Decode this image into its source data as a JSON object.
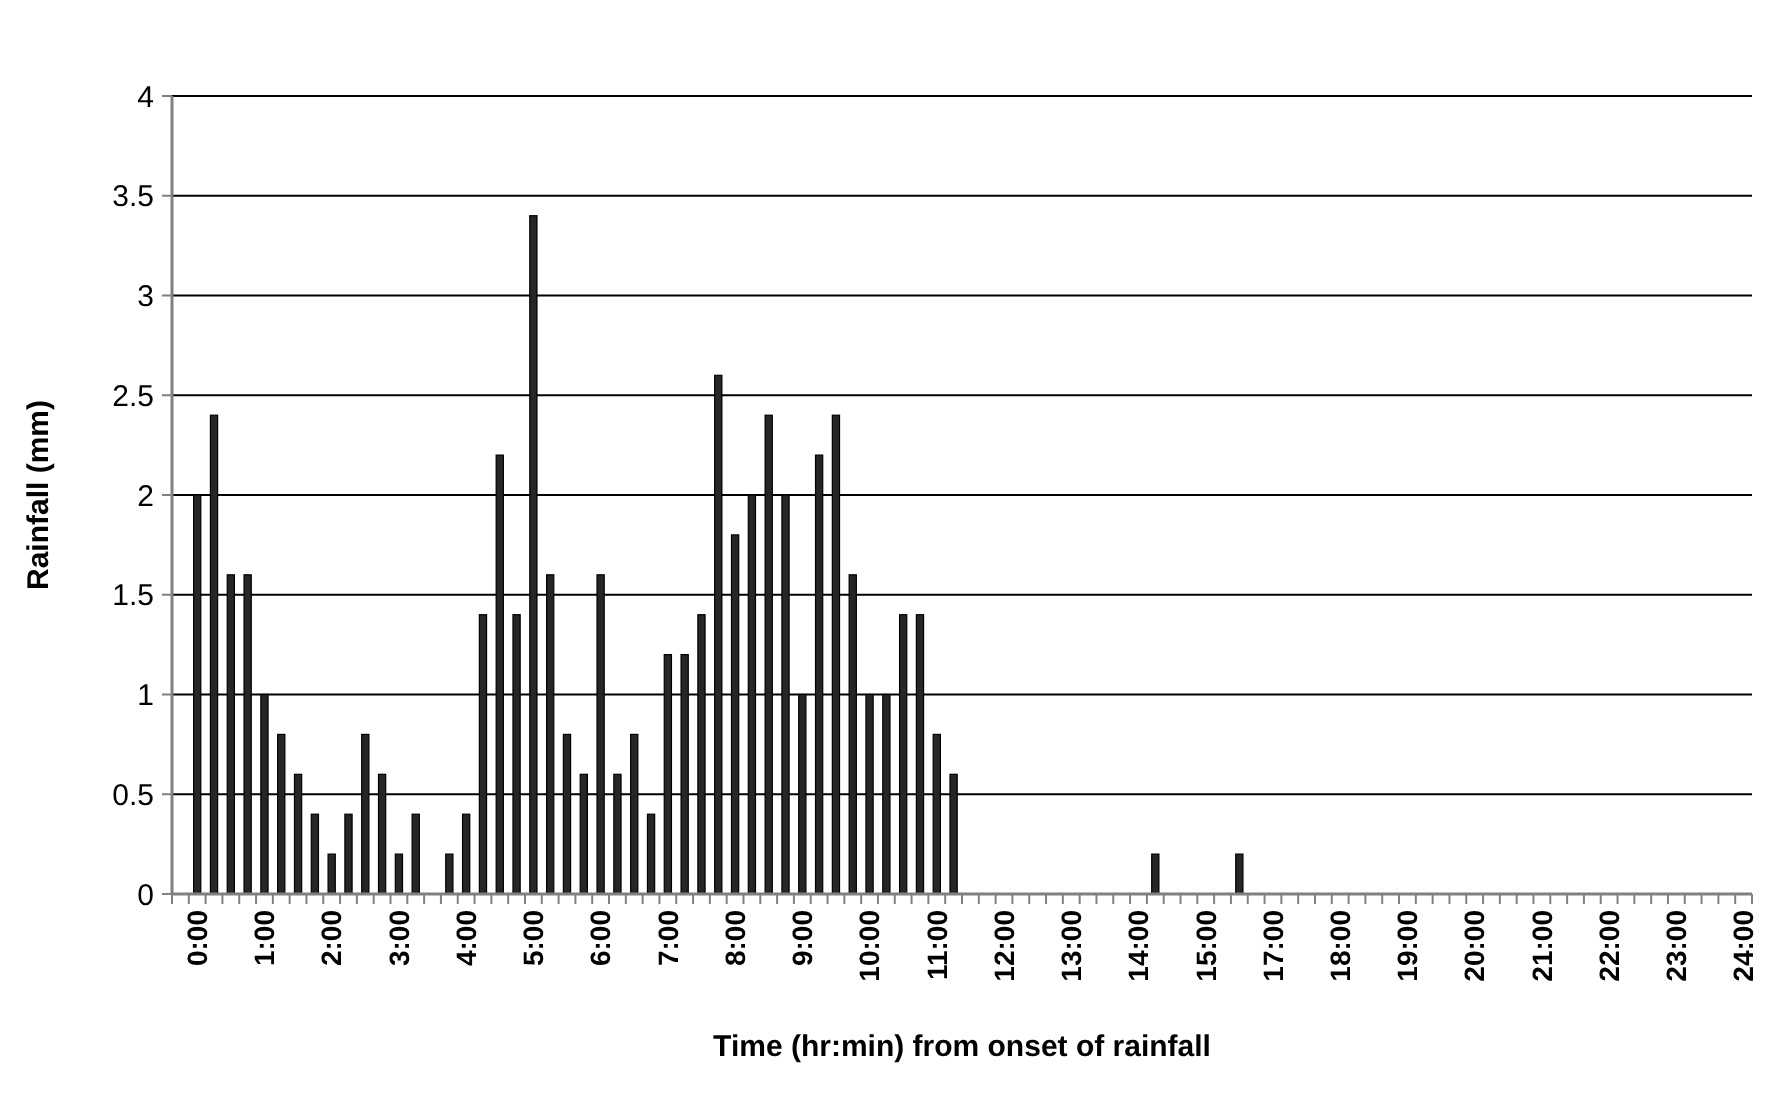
{
  "chart_data": {
    "type": "bar",
    "xlabel": "Time (hr:min) from onset of rainfall",
    "ylabel": "Rainfall (mm)",
    "categories": [
      null,
      "0:00",
      null,
      null,
      null,
      "1:00",
      null,
      null,
      null,
      "2:00",
      null,
      null,
      null,
      "3:00",
      null,
      null,
      null,
      "4:00",
      null,
      null,
      null,
      "5:00",
      null,
      null,
      null,
      "6:00",
      null,
      null,
      null,
      "7:00",
      null,
      null,
      null,
      "8:00",
      null,
      null,
      null,
      "9:00",
      null,
      null,
      null,
      "10:00",
      null,
      null,
      null,
      "11:00",
      null,
      null,
      null,
      "12:00",
      null,
      null,
      null,
      "13:00",
      null,
      null,
      null,
      "14:00",
      null,
      null,
      null,
      "15:00",
      null,
      null,
      null,
      "17:00",
      null,
      null,
      null,
      "18:00",
      null,
      null,
      null,
      "19:00",
      null,
      null,
      null,
      "20:00",
      null,
      null,
      null,
      "21:00",
      null,
      null,
      null,
      "22:00",
      null,
      null,
      null,
      "23:00",
      null,
      null,
      null,
      "24:00"
    ],
    "values": [
      0,
      2.0,
      2.4,
      1.6,
      1.6,
      1.0,
      0.8,
      0.6,
      0.4,
      0.2,
      0.4,
      0.8,
      0.6,
      0.2,
      0.4,
      0,
      0.2,
      0.4,
      1.4,
      2.2,
      1.4,
      3.4,
      1.6,
      0.8,
      0.6,
      1.6,
      0.6,
      0.8,
      0.4,
      1.2,
      1.2,
      1.4,
      2.6,
      1.8,
      2.0,
      2.4,
      2.0,
      1.0,
      2.2,
      2.4,
      1.6,
      1.0,
      1.0,
      1.4,
      1.4,
      0.8,
      0.6,
      0,
      0,
      0,
      0,
      0,
      0,
      0,
      0,
      0,
      0,
      0,
      0.2,
      0,
      0,
      0,
      0,
      0.2,
      0,
      0,
      0,
      0,
      0,
      0,
      0,
      0,
      0,
      0,
      0,
      0,
      0,
      0,
      0,
      0,
      0,
      0,
      0,
      0,
      0,
      0,
      0,
      0,
      0,
      0,
      0,
      0,
      0,
      0
    ],
    "color": "#262626",
    "ylim": [
      0,
      4
    ],
    "yticks": [
      0,
      0.5,
      1,
      1.5,
      2,
      2.5,
      3,
      3.5,
      4
    ],
    "grid": "y"
  }
}
